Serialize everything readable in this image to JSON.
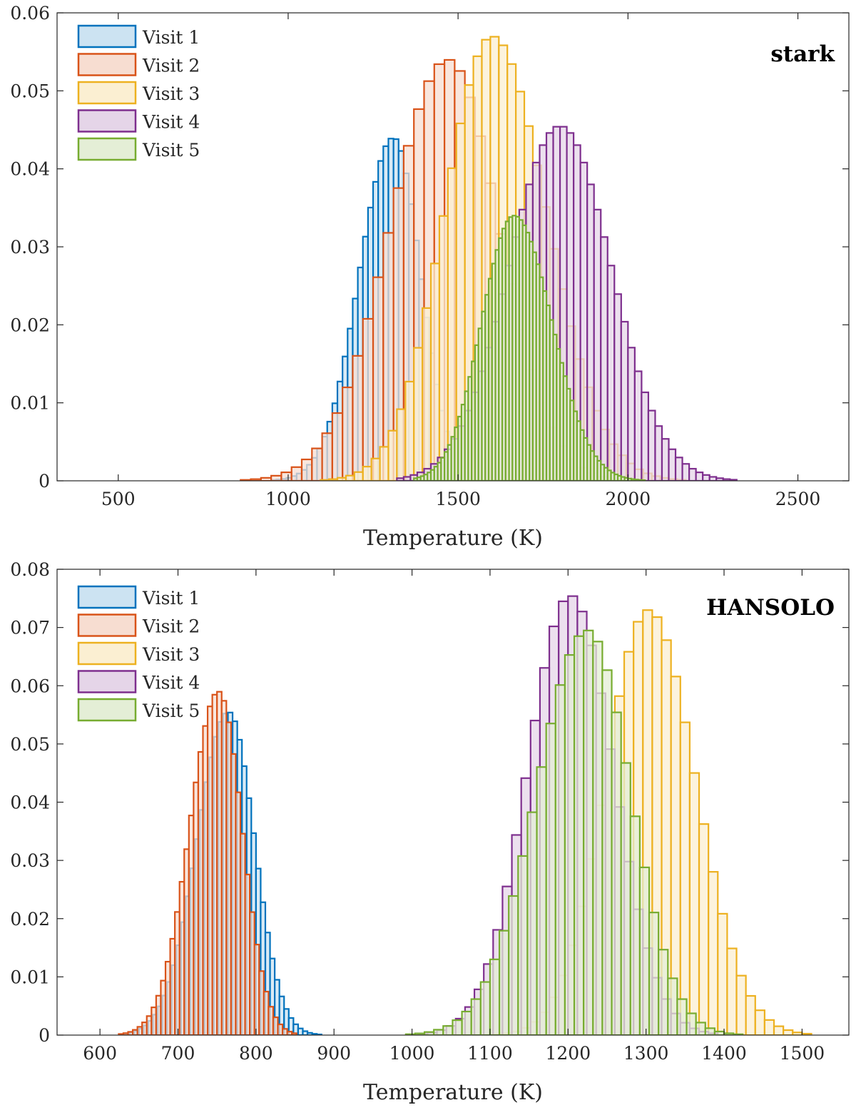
{
  "chart_data": [
    {
      "type": "histogram",
      "panel_label": "stark",
      "xlabel": "Temperature (K)",
      "ylabel": "",
      "xlim": [
        320,
        2650
      ],
      "ylim": [
        0,
        0.06
      ],
      "xticks": [
        500,
        1000,
        1500,
        2000,
        2500
      ],
      "yticks": [
        0,
        0.01,
        0.02,
        0.03,
        0.04,
        0.05,
        0.06
      ],
      "xtick_labels": [
        "500",
        "1000",
        "1500",
        "2000",
        "2500"
      ],
      "ytick_labels": [
        "0",
        "0.01",
        "0.02",
        "0.03",
        "0.04",
        "0.05",
        "0.06"
      ],
      "legend_position": "top-left",
      "series": [
        {
          "name": "Visit 1",
          "color": "#0072BD",
          "bin_start": 890,
          "bin_width": 15,
          "peak": 0.044,
          "center": 1310,
          "sigma_left": 100,
          "sigma_right": 80,
          "range": [
            890,
            1560
          ]
        },
        {
          "name": "Visit 2",
          "color": "#D95319",
          "bin_start": 380,
          "bin_width": 30,
          "peak": 0.054,
          "center": 1470,
          "sigma_left": 170,
          "sigma_right": 150,
          "range": [
            380,
            2150
          ]
        },
        {
          "name": "Visit 3",
          "color": "#EDB120",
          "bin_start": 920,
          "bin_width": 25,
          "peak": 0.057,
          "center": 1600,
          "sigma_left": 140,
          "sigma_right": 160,
          "range": [
            920,
            2180
          ]
        },
        {
          "name": "Visit 4",
          "color": "#7E2F8E",
          "bin_start": 1320,
          "bin_width": 20,
          "peak": 0.0455,
          "center": 1800,
          "sigma_left": 150,
          "sigma_right": 150,
          "range": [
            1320,
            2580
          ]
        },
        {
          "name": "Visit 5",
          "color": "#77AC30",
          "bin_start": 1370,
          "bin_width": 10,
          "peak": 0.034,
          "center": 1665,
          "sigma_left": 95,
          "sigma_right": 110,
          "range": [
            1370,
            2090
          ]
        }
      ]
    },
    {
      "type": "histogram",
      "panel_label": "HANSOLO",
      "xlabel": "Temperature (K)",
      "ylabel": "",
      "xlim": [
        545,
        1560
      ],
      "ylim": [
        0,
        0.08
      ],
      "xticks": [
        600,
        700,
        800,
        900,
        1000,
        1100,
        1200,
        1300,
        1400,
        1500
      ],
      "yticks": [
        0,
        0.01,
        0.02,
        0.03,
        0.04,
        0.05,
        0.06,
        0.07,
        0.08
      ],
      "xtick_labels": [
        "600",
        "700",
        "800",
        "900",
        "1000",
        "1100",
        "1200",
        "1300",
        "1400",
        "1500"
      ],
      "ytick_labels": [
        "0",
        "0.01",
        "0.02",
        "0.03",
        "0.04",
        "0.05",
        "0.06",
        "0.07",
        "0.08"
      ],
      "legend_position": "top-left",
      "series": [
        {
          "name": "Visit 1",
          "color": "#0072BD",
          "bin_start": 560,
          "bin_width": 6,
          "peak": 0.0555,
          "center": 765,
          "sigma_left": 40,
          "sigma_right": 33,
          "range": [
            560,
            880
          ]
        },
        {
          "name": "Visit 2",
          "color": "#D95319",
          "bin_start": 570,
          "bin_width": 6,
          "peak": 0.059,
          "center": 752,
          "sigma_left": 37,
          "sigma_right": 30,
          "range": [
            570,
            850
          ]
        },
        {
          "name": "Visit 3",
          "color": "#EDB120",
          "bin_start": 1020,
          "bin_width": 12,
          "peak": 0.073,
          "center": 1303,
          "sigma_left": 55,
          "sigma_right": 60,
          "range": [
            1020,
            1540
          ]
        },
        {
          "name": "Visit 4",
          "color": "#7E2F8E",
          "bin_start": 960,
          "bin_width": 12,
          "peak": 0.0755,
          "center": 1203,
          "sigma_left": 55,
          "sigma_right": 55,
          "range": [
            960,
            1440
          ]
        },
        {
          "name": "Visit 5",
          "color": "#77AC30",
          "bin_start": 980,
          "bin_width": 12,
          "peak": 0.0695,
          "center": 1225,
          "sigma_left": 65,
          "sigma_right": 55,
          "range": [
            980,
            1440
          ]
        }
      ]
    }
  ]
}
